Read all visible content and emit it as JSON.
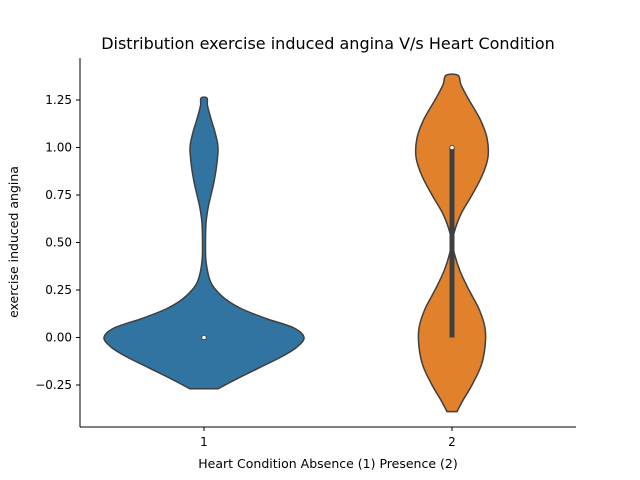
{
  "chart_data": {
    "type": "violin",
    "title": "Distribution exercise induced angina V/s Heart Condition",
    "xlabel": "Heart Condition Absence (1) Presence (2)",
    "ylabel": "exercise induced angina",
    "categories": [
      "1",
      "2"
    ],
    "ylim": [
      -0.4,
      1.45
    ],
    "yticks": [
      -0.25,
      0.0,
      0.25,
      0.5,
      0.75,
      1.0,
      1.25
    ],
    "ytick_labels": [
      "−0.25",
      "0.00",
      "0.25",
      "0.50",
      "0.75",
      "1.00",
      "1.25"
    ],
    "grid": false,
    "legend": "none",
    "series": [
      {
        "category": "1",
        "color": "#3274a1",
        "y_range": [
          -0.27,
          1.26
        ],
        "median": 0.0,
        "q1": 0.0,
        "q3": 0.0,
        "profile": [
          [
            -0.27,
            0.14
          ],
          [
            -0.22,
            0.32
          ],
          [
            -0.16,
            0.55
          ],
          [
            -0.1,
            0.78
          ],
          [
            -0.05,
            0.93
          ],
          [
            0.0,
            1.0
          ],
          [
            0.05,
            0.9
          ],
          [
            0.1,
            0.62
          ],
          [
            0.15,
            0.38
          ],
          [
            0.2,
            0.22
          ],
          [
            0.25,
            0.12
          ],
          [
            0.3,
            0.06
          ],
          [
            0.4,
            0.02
          ],
          [
            0.5,
            0.015
          ],
          [
            0.6,
            0.02
          ],
          [
            0.68,
            0.04
          ],
          [
            0.75,
            0.07
          ],
          [
            0.82,
            0.1
          ],
          [
            0.9,
            0.125
          ],
          [
            1.0,
            0.14
          ],
          [
            1.08,
            0.11
          ],
          [
            1.15,
            0.07
          ],
          [
            1.22,
            0.035
          ],
          [
            1.26,
            0.03
          ]
        ]
      },
      {
        "category": "2",
        "color": "#e1812c",
        "y_range": [
          -0.39,
          1.38
        ],
        "median": 1.0,
        "q1": 0.0,
        "q3": 1.0,
        "profile": [
          [
            -0.39,
            0.05
          ],
          [
            -0.33,
            0.11
          ],
          [
            -0.25,
            0.2
          ],
          [
            -0.15,
            0.29
          ],
          [
            -0.05,
            0.33
          ],
          [
            0.05,
            0.33
          ],
          [
            0.15,
            0.27
          ],
          [
            0.25,
            0.17
          ],
          [
            0.35,
            0.08
          ],
          [
            0.45,
            0.02
          ],
          [
            0.5,
            0.01
          ],
          [
            0.55,
            0.02
          ],
          [
            0.65,
            0.09
          ],
          [
            0.75,
            0.2
          ],
          [
            0.85,
            0.3
          ],
          [
            0.95,
            0.36
          ],
          [
            1.05,
            0.35
          ],
          [
            1.15,
            0.28
          ],
          [
            1.25,
            0.17
          ],
          [
            1.33,
            0.09
          ],
          [
            1.38,
            0.06
          ]
        ]
      }
    ]
  }
}
